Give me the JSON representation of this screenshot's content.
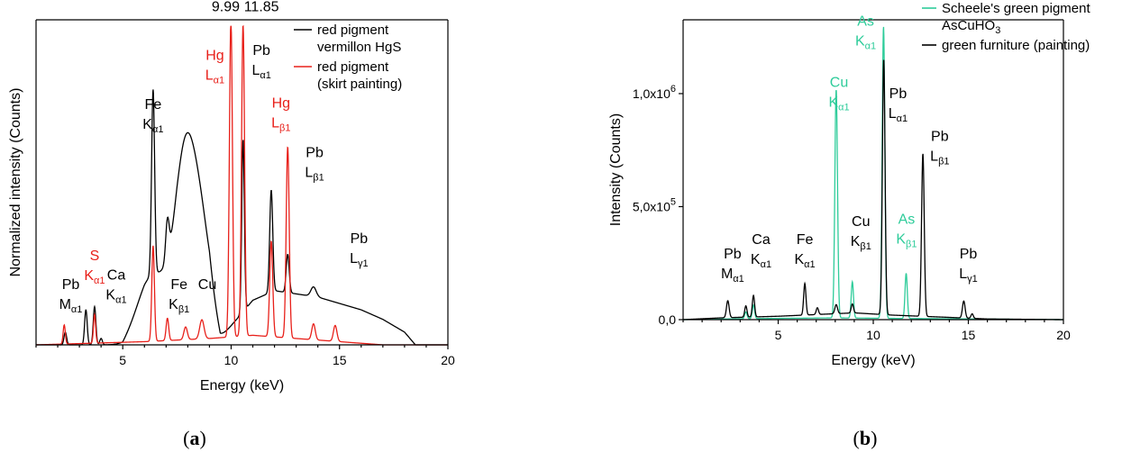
{
  "figure": {
    "caption_a": "a",
    "caption_b": "b"
  },
  "chart_data": [
    {
      "type": "line",
      "panel": "a",
      "xlabel": "Energy (keV)",
      "ylabel": "Normalized intensity (Counts)",
      "xlim": [
        1,
        20
      ],
      "ylim": [
        0,
        1
      ],
      "x_ticks": [
        5,
        10,
        15,
        20
      ],
      "legend_position": "top-right",
      "colors": {
        "vermillon": "#000000",
        "skirt": "#e8201a"
      },
      "series": [
        {
          "name": "red pigment vermillon HgS",
          "legend_lines": [
            "red pigment",
            "vermillon HgS"
          ],
          "color": "#000000",
          "peaks": [
            {
              "x": 2.35,
              "y": 0.04,
              "w": 0.06
            },
            {
              "x": 3.3,
              "y": 0.11,
              "w": 0.06
            },
            {
              "x": 3.7,
              "y": 0.12,
              "w": 0.06
            },
            {
              "x": 4.0,
              "y": 0.02,
              "w": 0.06
            },
            {
              "x": 6.4,
              "y": 0.58,
              "w": 0.07
            },
            {
              "x": 7.06,
              "y": 0.12,
              "w": 0.08
            },
            {
              "x": 10.55,
              "y": 0.54,
              "w": 0.06
            },
            {
              "x": 11.85,
              "y": 0.32,
              "w": 0.07
            },
            {
              "x": 12.61,
              "y": 0.12,
              "w": 0.07
            },
            {
              "x": 13.8,
              "y": 0.03,
              "w": 0.12
            }
          ],
          "humps": [
            {
              "x": 7.9,
              "y": 0.44,
              "w": 0.45
            },
            {
              "x": 8.6,
              "y": 0.2,
              "w": 0.4
            },
            {
              "x": 6.3,
              "y": 0.1,
              "w": 0.6
            }
          ],
          "continuum": [
            [
              1.0,
              0.0
            ],
            [
              5.0,
              0.0
            ],
            [
              5.5,
              0.05
            ],
            [
              6.0,
              0.1
            ],
            [
              7.5,
              0.18
            ],
            [
              9.0,
              0.15
            ],
            [
              9.5,
              0.02
            ],
            [
              11.0,
              0.14
            ],
            [
              12.0,
              0.17
            ],
            [
              13.0,
              0.16
            ],
            [
              14.0,
              0.15
            ],
            [
              15.0,
              0.13
            ],
            [
              16.0,
              0.11
            ],
            [
              17.0,
              0.08
            ],
            [
              18.0,
              0.04
            ],
            [
              18.5,
              0.0
            ],
            [
              20.0,
              0.0
            ]
          ]
        },
        {
          "name": "red pigment (skirt painting)",
          "legend_lines": [
            "red pigment",
            "(skirt painting)"
          ],
          "color": "#e8201a",
          "peaks": [
            {
              "x": 2.3,
              "y": 0.06,
              "w": 0.05
            },
            {
              "x": 3.7,
              "y": 0.09,
              "w": 0.05
            },
            {
              "x": 6.4,
              "y": 0.3,
              "w": 0.06
            },
            {
              "x": 7.06,
              "y": 0.07,
              "w": 0.06
            },
            {
              "x": 7.9,
              "y": 0.04,
              "w": 0.08
            },
            {
              "x": 8.65,
              "y": 0.06,
              "w": 0.1
            },
            {
              "x": 9.99,
              "y": 1.0,
              "w": 0.07
            },
            {
              "x": 10.55,
              "y": 0.98,
              "w": 0.07
            },
            {
              "x": 11.85,
              "y": 0.3,
              "w": 0.07
            },
            {
              "x": 12.61,
              "y": 0.6,
              "w": 0.07
            },
            {
              "x": 13.8,
              "y": 0.05,
              "w": 0.08
            },
            {
              "x": 14.8,
              "y": 0.05,
              "w": 0.08
            }
          ],
          "humps": [],
          "continuum": [
            [
              1.0,
              0.0
            ],
            [
              6.0,
              0.01
            ],
            [
              9.0,
              0.02
            ],
            [
              11.0,
              0.03
            ],
            [
              13.0,
              0.02
            ],
            [
              15.0,
              0.01
            ],
            [
              17.0,
              0.0
            ],
            [
              20.0,
              0.0
            ]
          ]
        }
      ],
      "annotations": [
        {
          "lines": [
            "Pb",
            "M|α1"
          ],
          "x": 2.6,
          "y": 0.175,
          "color": "#000000"
        },
        {
          "lines": [
            "S",
            "K|α1"
          ],
          "x": 3.7,
          "y": 0.265,
          "color": "#e8201a"
        },
        {
          "lines": [
            "Ca",
            "K|α1"
          ],
          "x": 4.7,
          "y": 0.205,
          "color": "#000000"
        },
        {
          "lines": [
            "Fe",
            "K|α1"
          ],
          "x": 6.4,
          "y": 0.74,
          "color": "#000000"
        },
        {
          "lines": [
            "Fe",
            "K|β1"
          ],
          "x": 7.6,
          "y": 0.175,
          "color": "#000000"
        },
        {
          "lines": [
            "Cu"
          ],
          "x": 8.9,
          "y": 0.175,
          "color": "#000000"
        },
        {
          "lines": [
            "Hg",
            "L|α1"
          ],
          "x": 9.25,
          "y": 0.895,
          "color": "#e8201a"
        },
        {
          "lines": [
            "Pb",
            "L|α1"
          ],
          "x": 11.4,
          "y": 0.91,
          "color": "#000000"
        },
        {
          "lines": [
            "Hg",
            "L|β1"
          ],
          "x": 12.3,
          "y": 0.745,
          "color": "#e8201a"
        },
        {
          "lines": [
            "Pb",
            "L|β1"
          ],
          "x": 13.85,
          "y": 0.59,
          "color": "#000000"
        },
        {
          "lines": [
            "Pb",
            "L|γ1"
          ],
          "x": 15.9,
          "y": 0.32,
          "color": "#000000"
        }
      ],
      "value_labels": [
        {
          "text": "9.99",
          "x": 9.75,
          "y": 1.03
        },
        {
          "text": "11.85",
          "x": 11.4,
          "y": 1.03
        }
      ]
    },
    {
      "type": "line",
      "panel": "b",
      "xlabel": "Energy (keV)",
      "ylabel": "Intensity (Counts)",
      "xlim": [
        0,
        20
      ],
      "ylim": [
        0,
        1300000
      ],
      "x_ticks": [
        5,
        10,
        15,
        20
      ],
      "y_ticks": [
        {
          "value": 0,
          "label": "0,0"
        },
        {
          "value": 500000,
          "label": "5,0x10|5"
        },
        {
          "value": 1000000,
          "label": "1,0x10|6"
        }
      ],
      "legend_position": "top-right",
      "colors": {
        "scheele": "#2ecc9a",
        "furniture": "#000000"
      },
      "series": [
        {
          "name": "Scheele's green pigment AsCuHO3",
          "legend_lines": [
            "Scheele's green pigment",
            "AsCuHO|3"
          ],
          "color": "#2ecc9a",
          "peaks": [
            {
              "x": 3.3,
              "y": 30000,
              "w": 0.06
            },
            {
              "x": 3.7,
              "y": 60000,
              "w": 0.06
            },
            {
              "x": 8.05,
              "y": 1010000,
              "w": 0.07
            },
            {
              "x": 8.9,
              "y": 160000,
              "w": 0.06
            },
            {
              "x": 10.54,
              "y": 1290000,
              "w": 0.07
            },
            {
              "x": 11.73,
              "y": 200000,
              "w": 0.06
            }
          ],
          "humps": [],
          "continuum": [
            [
              0.0,
              0.0
            ],
            [
              3.0,
              4000
            ],
            [
              8.0,
              8000
            ],
            [
              12.0,
              5000
            ],
            [
              20.0,
              0.0
            ]
          ]
        },
        {
          "name": "green furniture (painting)",
          "legend_lines": [
            "green furniture (painting)"
          ],
          "color": "#000000",
          "peaks": [
            {
              "x": 2.35,
              "y": 75000,
              "w": 0.07
            },
            {
              "x": 3.3,
              "y": 50000,
              "w": 0.06
            },
            {
              "x": 3.7,
              "y": 95000,
              "w": 0.06
            },
            {
              "x": 6.4,
              "y": 140000,
              "w": 0.06
            },
            {
              "x": 7.06,
              "y": 30000,
              "w": 0.06
            },
            {
              "x": 8.05,
              "y": 40000,
              "w": 0.07
            },
            {
              "x": 8.9,
              "y": 40000,
              "w": 0.06
            },
            {
              "x": 10.55,
              "y": 1130000,
              "w": 0.07
            },
            {
              "x": 12.61,
              "y": 720000,
              "w": 0.07
            },
            {
              "x": 14.76,
              "y": 75000,
              "w": 0.07
            },
            {
              "x": 15.2,
              "y": 20000,
              "w": 0.06
            }
          ],
          "humps": [],
          "continuum": [
            [
              0.0,
              0.0
            ],
            [
              2.0,
              8000
            ],
            [
              5.0,
              15000
            ],
            [
              9.0,
              30000
            ],
            [
              11.0,
              20000
            ],
            [
              14.0,
              10000
            ],
            [
              16.0,
              3000
            ],
            [
              20.0,
              0.0
            ]
          ]
        }
      ],
      "annotations": [
        {
          "lines": [
            "Pb",
            "M|α1"
          ],
          "x": 2.6,
          "y": 270000,
          "color": "#000000"
        },
        {
          "lines": [
            "Ca",
            "K|α1"
          ],
          "x": 4.1,
          "y": 335000,
          "color": "#000000"
        },
        {
          "lines": [
            "Fe",
            "K|α1"
          ],
          "x": 6.4,
          "y": 335000,
          "color": "#000000"
        },
        {
          "lines": [
            "Cu",
            "K|α1"
          ],
          "x": 8.2,
          "y": 1030000,
          "color": "#2ecc9a"
        },
        {
          "lines": [
            "Cu",
            "K|β1"
          ],
          "x": 9.35,
          "y": 415000,
          "color": "#000000"
        },
        {
          "lines": [
            "As",
            "K|α1"
          ],
          "x": 9.6,
          "y": 1300000,
          "color": "#2ecc9a"
        },
        {
          "lines": [
            "Pb",
            "L|α1"
          ],
          "x": 11.3,
          "y": 980000,
          "color": "#000000"
        },
        {
          "lines": [
            "As",
            "K|β1"
          ],
          "x": 11.75,
          "y": 425000,
          "color": "#2ecc9a"
        },
        {
          "lines": [
            "Pb",
            "L|β1"
          ],
          "x": 13.5,
          "y": 790000,
          "color": "#000000"
        },
        {
          "lines": [
            "Pb",
            "L|γ1"
          ],
          "x": 15.0,
          "y": 270000,
          "color": "#000000"
        }
      ],
      "value_labels": []
    }
  ]
}
